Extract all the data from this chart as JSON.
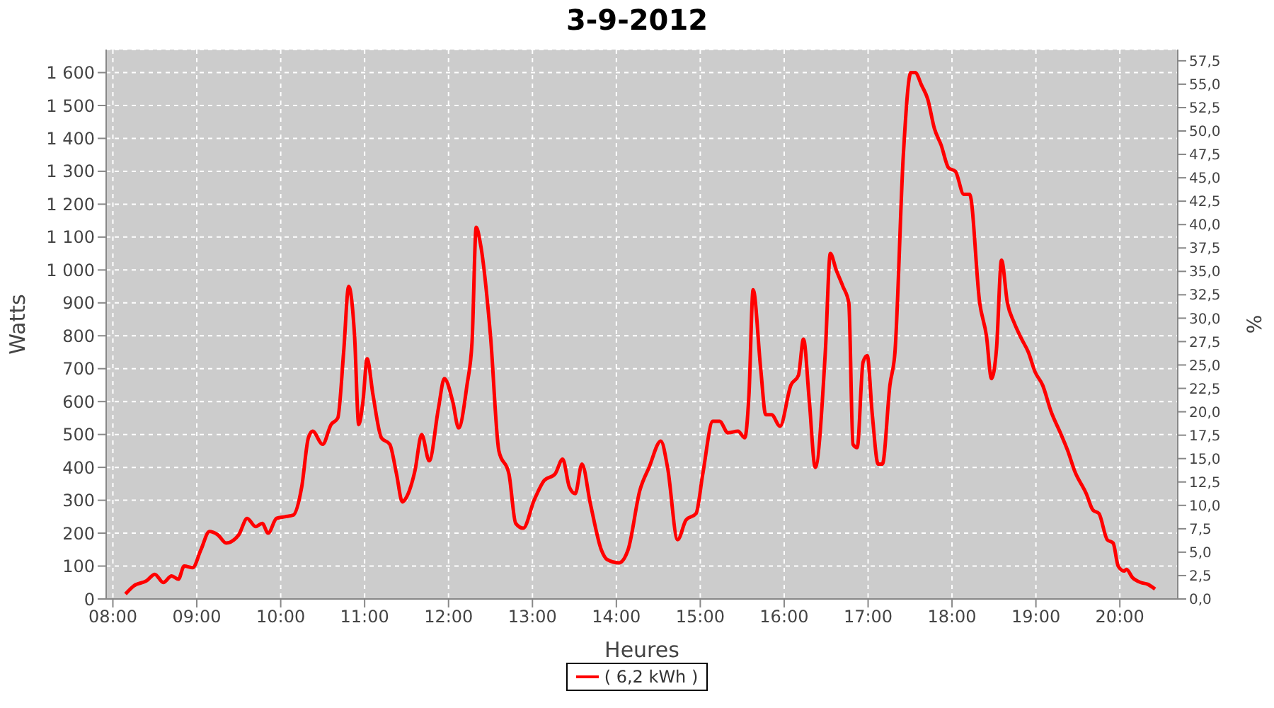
{
  "chart_data": {
    "type": "line",
    "title": "3-9-2012",
    "xlabel": "Heures",
    "ylabel": "Watts",
    "y2label": "%",
    "x": [
      8.15,
      8.25,
      8.4,
      8.5,
      8.6,
      8.7,
      8.78,
      8.85,
      8.95,
      9.05,
      9.15,
      9.25,
      9.35,
      9.5,
      9.6,
      9.7,
      9.78,
      9.85,
      9.95,
      10.05,
      10.15,
      10.25,
      10.33,
      10.38,
      10.5,
      10.6,
      10.68,
      10.75,
      10.81,
      10.88,
      10.93,
      10.98,
      11.03,
      11.1,
      11.2,
      11.3,
      11.38,
      11.45,
      11.5,
      11.6,
      11.68,
      11.77,
      11.88,
      11.95,
      12.05,
      12.12,
      12.22,
      12.28,
      12.33,
      12.38,
      12.5,
      12.6,
      12.72,
      12.8,
      12.89,
      13.02,
      13.14,
      13.27,
      13.36,
      13.44,
      13.51,
      13.59,
      13.69,
      13.82,
      13.89,
      14.03,
      14.14,
      14.28,
      14.39,
      14.53,
      14.61,
      14.73,
      14.83,
      14.95,
      15.03,
      15.15,
      15.23,
      15.33,
      15.45,
      15.53,
      15.58,
      15.63,
      15.72,
      15.78,
      15.85,
      15.95,
      16.08,
      16.17,
      16.23,
      16.3,
      16.37,
      16.49,
      16.55,
      16.62,
      16.7,
      16.77,
      16.82,
      16.87,
      16.94,
      16.99,
      17.05,
      17.12,
      17.17,
      17.26,
      17.32,
      17.42,
      17.51,
      17.56,
      17.64,
      17.71,
      17.79,
      17.87,
      17.96,
      18.04,
      18.14,
      18.21,
      18.33,
      18.41,
      18.47,
      18.53,
      18.59,
      18.66,
      18.74,
      18.83,
      18.91,
      18.99,
      19.08,
      19.18,
      19.3,
      19.38,
      19.46,
      19.6,
      19.68,
      19.75,
      19.85,
      19.92,
      19.98,
      20.05,
      20.08,
      20.15,
      20.25,
      20.33,
      20.42
    ],
    "series": [
      {
        "name": "( 6,2 kWh )",
        "color": "#ff0000",
        "values": [
          15,
          40,
          55,
          75,
          50,
          70,
          60,
          100,
          95,
          150,
          205,
          195,
          170,
          195,
          245,
          220,
          230,
          200,
          245,
          250,
          255,
          340,
          490,
          510,
          470,
          530,
          550,
          750,
          950,
          800,
          530,
          600,
          730,
          620,
          490,
          470,
          380,
          295,
          310,
          390,
          500,
          420,
          580,
          670,
          600,
          520,
          650,
          780,
          1130,
          1080,
          800,
          450,
          380,
          230,
          215,
          300,
          360,
          380,
          425,
          340,
          320,
          410,
          290,
          150,
          120,
          110,
          150,
          330,
          400,
          480,
          400,
          180,
          240,
          260,
          380,
          540,
          540,
          505,
          510,
          490,
          620,
          940,
          700,
          560,
          560,
          525,
          650,
          680,
          790,
          600,
          400,
          750,
          1050,
          1000,
          950,
          900,
          470,
          460,
          720,
          740,
          560,
          410,
          410,
          650,
          750,
          1350,
          1600,
          1600,
          1560,
          1520,
          1430,
          1380,
          1310,
          1300,
          1230,
          1230,
          900,
          800,
          670,
          760,
          1030,
          900,
          840,
          790,
          750,
          690,
          650,
          570,
          500,
          450,
          390,
          320,
          270,
          260,
          180,
          170,
          100,
          85,
          90,
          65,
          50,
          45,
          30
        ]
      }
    ],
    "xlim": [
      7.92,
      20.69
    ],
    "xticks": [
      {
        "value": 8,
        "label": "08:00"
      },
      {
        "value": 9,
        "label": "09:00"
      },
      {
        "value": 10,
        "label": "10:00"
      },
      {
        "value": 11,
        "label": "11:00"
      },
      {
        "value": 12,
        "label": "12:00"
      },
      {
        "value": 13,
        "label": "13:00"
      },
      {
        "value": 14,
        "label": "14:00"
      },
      {
        "value": 15,
        "label": "15:00"
      },
      {
        "value": 16,
        "label": "16:00"
      },
      {
        "value": 17,
        "label": "17:00"
      },
      {
        "value": 18,
        "label": "18:00"
      },
      {
        "value": 19,
        "label": "19:00"
      },
      {
        "value": 20,
        "label": "20:00"
      }
    ],
    "ylim": [
      0,
      1670
    ],
    "yticks": [
      0,
      100,
      200,
      300,
      400,
      500,
      600,
      700,
      800,
      900,
      {
        "value": 1000,
        "label": "1 000"
      },
      {
        "value": 1100,
        "label": "1 100"
      },
      {
        "value": 1200,
        "label": "1 200"
      },
      {
        "value": 1300,
        "label": "1 300"
      },
      {
        "value": 1400,
        "label": "1 400"
      },
      {
        "value": 1500,
        "label": "1 500"
      },
      {
        "value": 1600,
        "label": "1 600"
      }
    ],
    "y2lim": [
      0,
      58.7
    ],
    "y2ticks": [
      {
        "value": 0,
        "label": "0,0"
      },
      {
        "value": 2.5,
        "label": "2,5"
      },
      {
        "value": 5,
        "label": "5,0"
      },
      {
        "value": 7.5,
        "label": "7,5"
      },
      {
        "value": 10,
        "label": "10,0"
      },
      {
        "value": 12.5,
        "label": "12,5"
      },
      {
        "value": 15,
        "label": "15,0"
      },
      {
        "value": 17.5,
        "label": "17,5"
      },
      {
        "value": 20,
        "label": "20,0"
      },
      {
        "value": 22.5,
        "label": "22,5"
      },
      {
        "value": 25,
        "label": "25,0"
      },
      {
        "value": 27.5,
        "label": "27,5"
      },
      {
        "value": 30,
        "label": "30,0"
      },
      {
        "value": 32.5,
        "label": "32,5"
      },
      {
        "value": 35,
        "label": "35,0"
      },
      {
        "value": 37.5,
        "label": "37,5"
      },
      {
        "value": 40,
        "label": "40,0"
      },
      {
        "value": 42.5,
        "label": "42,5"
      },
      {
        "value": 45,
        "label": "45,0"
      },
      {
        "value": 47.5,
        "label": "47,5"
      },
      {
        "value": 50,
        "label": "50,0"
      },
      {
        "value": 52.5,
        "label": "52,5"
      },
      {
        "value": 55,
        "label": "55,0"
      },
      {
        "value": 57.5,
        "label": "57,5"
      }
    ],
    "grid": true,
    "legend": "bottom",
    "marker": "none"
  }
}
